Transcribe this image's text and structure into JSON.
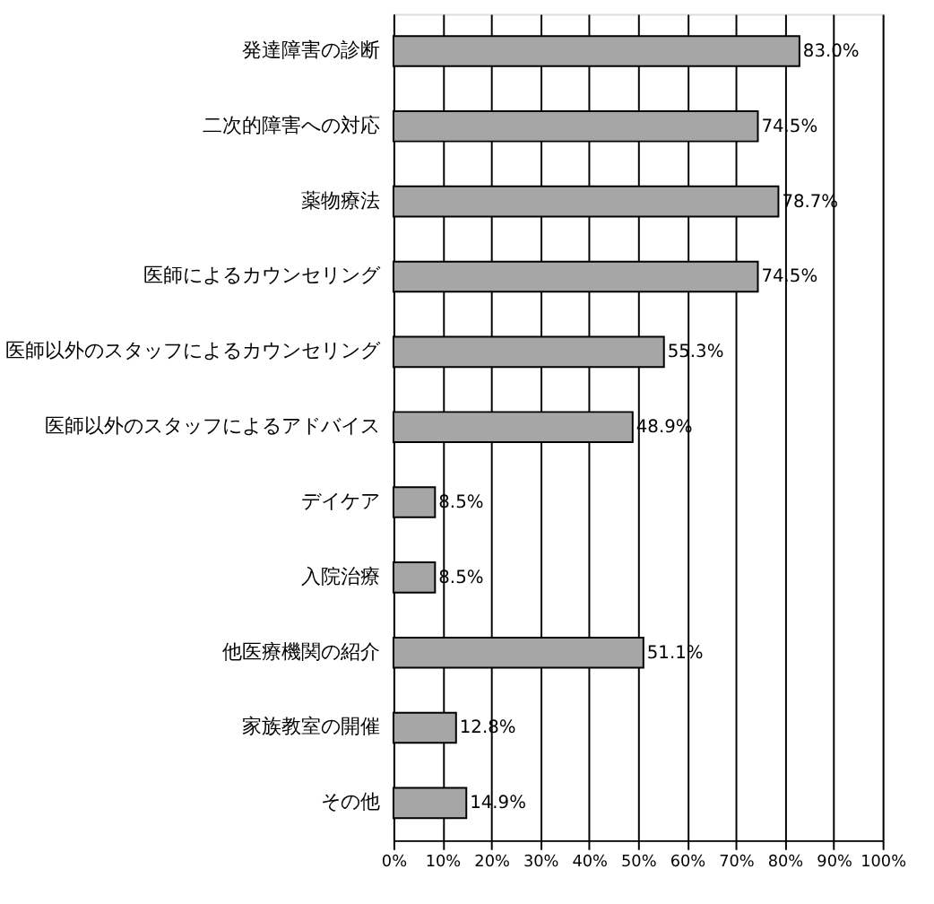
{
  "chart_data": {
    "type": "bar",
    "orientation": "horizontal",
    "categories": [
      "発達障害の診断",
      "二次的障害への対応",
      "薬物療法",
      "医師によるカウンセリング",
      "医師以外のスタッフによるカウンセリング",
      "医師以外のスタッフによるアドバイス",
      "デイケア",
      "入院治療",
      "他医療機関の紹介",
      "家族教室の開催",
      "その他"
    ],
    "values": [
      83.0,
      74.5,
      78.7,
      74.5,
      55.3,
      48.9,
      8.5,
      8.5,
      51.1,
      12.8,
      14.9
    ],
    "value_labels": [
      "83.0%",
      "74.5%",
      "78.7%",
      "74.5%",
      "55.3%",
      "48.9%",
      "8.5%",
      "8.5%",
      "51.1%",
      "12.8%",
      "14.9%"
    ],
    "color": "#a6a6a6",
    "xlim": [
      0,
      100
    ],
    "xticks": [
      {
        "value": 0,
        "label": "0%"
      },
      {
        "value": 10,
        "label": "10%"
      },
      {
        "value": 20,
        "label": "20%"
      },
      {
        "value": 30,
        "label": "30%"
      },
      {
        "value": 40,
        "label": "40%"
      },
      {
        "value": 50,
        "label": "50%"
      },
      {
        "value": 60,
        "label": "60%"
      },
      {
        "value": 70,
        "label": "70%"
      },
      {
        "value": 80,
        "label": "80%"
      },
      {
        "value": 90,
        "label": "90%"
      },
      {
        "value": 100,
        "label": "100%"
      }
    ],
    "grid": "x"
  }
}
